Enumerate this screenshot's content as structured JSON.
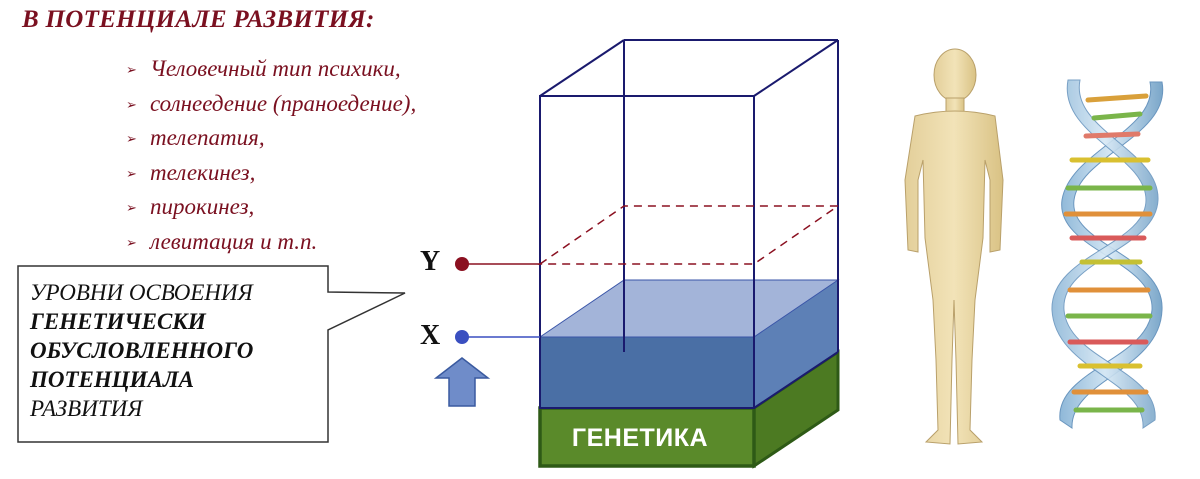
{
  "heading": "В ПОТЕНЦИАЛЕ РАЗВИТИЯ:",
  "bullets": [
    "Человечный тип психики,",
    "солнеедение (праноедение),",
    "телепатия,",
    "телекинез,",
    "пирокинез,",
    "левитация и т.п."
  ],
  "bullet_marker": "➢",
  "callout": {
    "line1": "УРОВНИ ОСВОЕНИЯ",
    "line2": "ГЕНЕТИЧЕСКИ",
    "line3": "ОБУСЛОВЛЕННОГО",
    "line4": "ПОТЕНЦИАЛА",
    "line5": "РАЗВИТИЯ"
  },
  "levels": {
    "y_label": "Y",
    "x_label": "X"
  },
  "base_label": "ГЕНЕТИКА",
  "colors": {
    "heading": "#7a1020",
    "box_outline": "#1a1a6e",
    "fill_front": "#4a6fa5",
    "fill_top": "#a3b4d9",
    "base_front": "#5a8a2a",
    "base_dark": "#2e5a16",
    "y_dot": "#8b1020",
    "x_dot": "#3a4fc0",
    "arrow": "#6f8cc9"
  },
  "icons": {
    "figure": "human-silhouette-icon",
    "dna": "dna-helix-icon",
    "arrow": "up-arrow-icon"
  }
}
